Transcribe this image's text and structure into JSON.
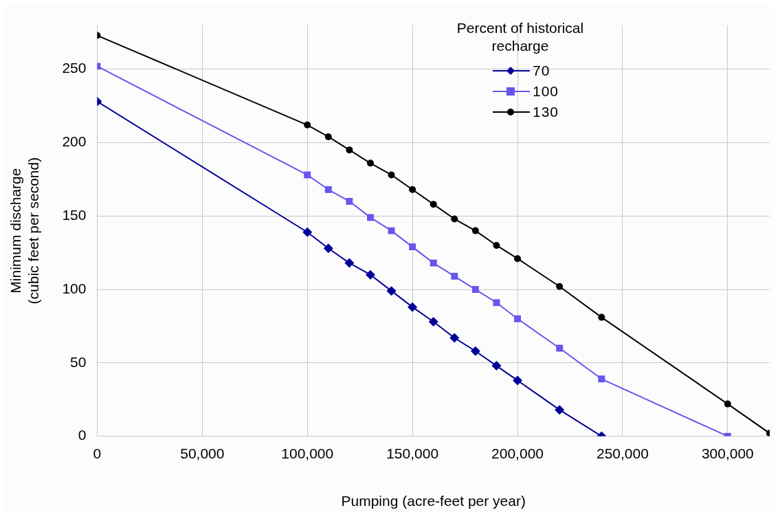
{
  "chart_data": {
    "type": "line",
    "xlabel": "Pumping (acre-feet per year)",
    "ylabel": "Minimum discharge\n(cubic feet per second)",
    "legend_title": "Percent of historical recharge",
    "xlim": [
      0,
      320000
    ],
    "xticks": [
      {
        "value": 0,
        "label": "0"
      },
      {
        "value": 50000,
        "label": "50,000"
      },
      {
        "value": 100000,
        "label": "100,000"
      },
      {
        "value": 150000,
        "label": "150,000"
      },
      {
        "value": 200000,
        "label": "200,000"
      },
      {
        "value": 250000,
        "label": "250,000"
      },
      {
        "value": 300000,
        "label": "300,000"
      }
    ],
    "ylim": [
      0,
      280
    ],
    "yticks": [
      0,
      50,
      100,
      150,
      200,
      250
    ],
    "grid": true,
    "legend": "top right",
    "line_style": "solid",
    "series": [
      {
        "name": "70",
        "color": "#000099",
        "marker": "diamond",
        "x": [
          0,
          100000,
          110000,
          120000,
          130000,
          140000,
          150000,
          160000,
          170000,
          180000,
          190000,
          200000,
          220000,
          240000
        ],
        "values": [
          228,
          139,
          128,
          118,
          110,
          99,
          88,
          78,
          67,
          58,
          48,
          38,
          18,
          0
        ]
      },
      {
        "name": "100",
        "color": "#6655ee",
        "marker": "square",
        "x": [
          0,
          100000,
          110000,
          120000,
          130000,
          140000,
          150000,
          160000,
          170000,
          180000,
          190000,
          200000,
          220000,
          240000,
          300000
        ],
        "values": [
          252,
          178,
          168,
          160,
          149,
          140,
          129,
          118,
          109,
          100,
          91,
          80,
          60,
          39,
          0
        ]
      },
      {
        "name": "130",
        "color": "#000000",
        "marker": "circle",
        "x": [
          0,
          100000,
          110000,
          120000,
          130000,
          140000,
          150000,
          160000,
          170000,
          180000,
          190000,
          200000,
          220000,
          240000,
          300000,
          320000
        ],
        "values": [
          273,
          212,
          204,
          195,
          186,
          178,
          168,
          158,
          148,
          140,
          130,
          121,
          102,
          81,
          22,
          2
        ]
      }
    ]
  }
}
